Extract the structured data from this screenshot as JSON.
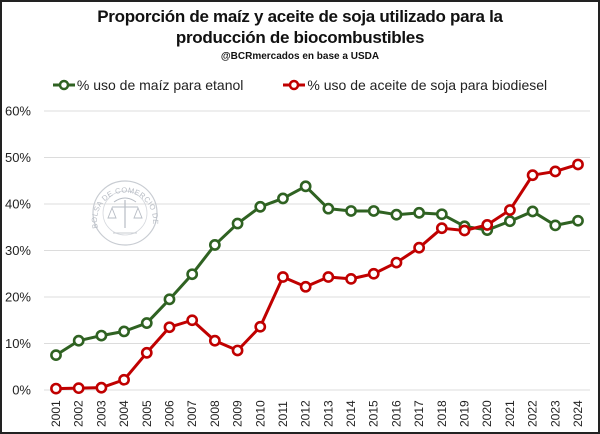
{
  "chart_data": {
    "type": "line",
    "title_line1": "Proporción de maíz y aceite de soja utilizado para la",
    "title_line2": "producción de biocombustibles",
    "subtitle": "@BCRmercados en base a USDA",
    "xlabel": "",
    "ylabel": "",
    "ylim": [
      0,
      60
    ],
    "yticks": [
      "0%",
      "10%",
      "20%",
      "30%",
      "40%",
      "50%",
      "60%"
    ],
    "ytick_values": [
      0,
      10,
      20,
      30,
      40,
      50,
      60
    ],
    "grid": true,
    "legend_position": "top",
    "categories": [
      "2001",
      "2002",
      "2003",
      "2004",
      "2005",
      "2006",
      "2007",
      "2008",
      "2009",
      "2010",
      "2011",
      "2012",
      "2013",
      "2014",
      "2015",
      "2016",
      "2017",
      "2018",
      "2019",
      "2020",
      "2021",
      "2022",
      "2023",
      "2024"
    ],
    "series": [
      {
        "name": "% uso de maíz para etanol",
        "color": "#2f6222",
        "values": [
          7.5,
          10.6,
          11.7,
          12.6,
          14.4,
          19.5,
          24.9,
          31.2,
          35.8,
          39.4,
          41.2,
          43.8,
          39.0,
          38.5,
          38.5,
          37.7,
          38.1,
          37.8,
          35.2,
          34.4,
          36.3,
          38.4,
          35.4,
          36.4
        ]
      },
      {
        "name": "% uso de aceite de soja para biodiesel",
        "color": "#c00000",
        "values": [
          0.3,
          0.4,
          0.5,
          2.2,
          8.0,
          13.5,
          15.0,
          10.6,
          8.5,
          13.6,
          24.3,
          22.2,
          24.3,
          23.9,
          25.0,
          27.4,
          30.6,
          34.8,
          34.3,
          35.5,
          38.7,
          46.2,
          47.0,
          48.5
        ]
      }
    ],
    "watermark": "BOLSA DE COMERCIO DE ROSARIO"
  }
}
